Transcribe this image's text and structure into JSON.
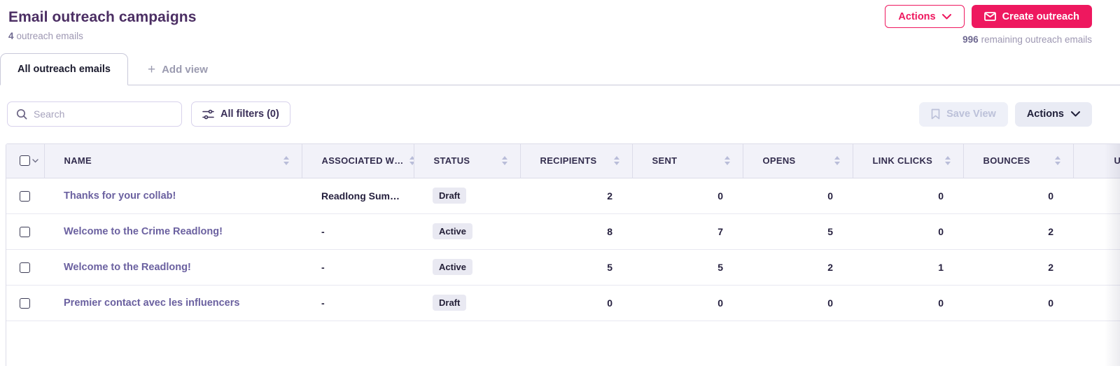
{
  "header": {
    "title": "Email outreach campaigns",
    "subtitle_count": "4",
    "subtitle_text": "outreach emails",
    "actions_label": "Actions",
    "create_label": "Create outreach",
    "remaining_count": "996",
    "remaining_text": "remaining outreach emails"
  },
  "tabs": {
    "active_tab": "All outreach emails",
    "add_view_label": "Add view",
    "plus_glyph": "+"
  },
  "toolbar": {
    "search_placeholder": "Search",
    "filters_label": "All filters (0)",
    "save_view_label": "Save View",
    "actions_label": "Actions"
  },
  "table": {
    "columns": [
      "NAME",
      "ASSOCIATED W…",
      "STATUS",
      "RECIPIENTS",
      "SENT",
      "OPENS",
      "LINK CLICKS",
      "BOUNCES"
    ],
    "partial_column": "U",
    "rows": [
      {
        "name": "Thanks for your collab!",
        "associated": "Readlong Sum…",
        "status": "Draft",
        "recipients": "2",
        "sent": "0",
        "opens": "0",
        "link_clicks": "0",
        "bounces": "0"
      },
      {
        "name": "Welcome to the Crime Readlong!",
        "associated": "-",
        "status": "Active",
        "recipients": "8",
        "sent": "7",
        "opens": "5",
        "link_clicks": "0",
        "bounces": "2"
      },
      {
        "name": "Welcome to the Readlong!",
        "associated": "-",
        "status": "Active",
        "recipients": "5",
        "sent": "5",
        "opens": "2",
        "link_clicks": "1",
        "bounces": "2"
      },
      {
        "name": "Premier contact avec les influencers",
        "associated": "-",
        "status": "Draft",
        "recipients": "0",
        "sent": "0",
        "opens": "0",
        "link_clicks": "0",
        "bounces": "0"
      }
    ]
  },
  "colors": {
    "accent_pink": "#ee185f",
    "title_purple": "#4b2e63",
    "name_link_purple": "#6b61a0",
    "header_bg": "#f2f2f9",
    "badge_bg": "#e9e9f2",
    "border": "#dcdce9"
  },
  "icons": {
    "create_button": "envelope-icon",
    "search": "search-icon",
    "filters": "sliders-icon",
    "save_view": "bookmark-icon",
    "sort": "sort-arrows-icon",
    "dropdowns": "chevron-down-icon"
  }
}
